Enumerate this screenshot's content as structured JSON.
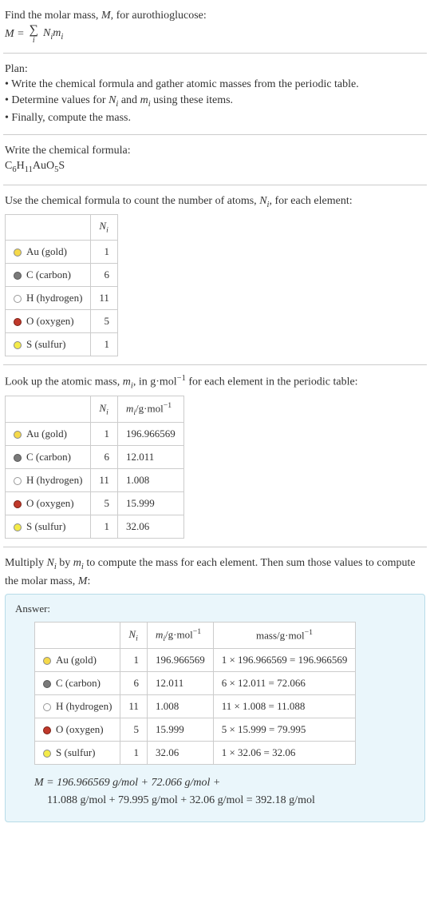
{
  "intro": {
    "line1_pre": "Find the molar mass, ",
    "line1_M": "M",
    "line1_post": ", for aurothioglucose:",
    "eq_lhs": "M = ",
    "eq_rhs_N": "N",
    "eq_rhs_i1": "i",
    "eq_rhs_m": "m",
    "eq_rhs_i2": "i",
    "sigma_idx": "i"
  },
  "plan": {
    "title": "Plan:",
    "b1_pre": "• Write the chemical formula and gather atomic masses from the periodic table.",
    "b2_pre": "• Determine values for ",
    "b2_N": "N",
    "b2_i1": "i",
    "b2_and": " and ",
    "b2_m": "m",
    "b2_i2": "i",
    "b2_post": " using these items.",
    "b3": "• Finally, compute the mass."
  },
  "chem": {
    "title": "Write the chemical formula:",
    "C": "C",
    "n6": "6",
    "H": "H",
    "n11": "11",
    "Au": "Au",
    "O": "O",
    "n5": "5",
    "S": "S"
  },
  "count": {
    "title_pre": "Use the chemical formula to count the number of atoms, ",
    "N": "N",
    "i": "i",
    "title_post": ", for each element:",
    "hdr_Ni_N": "N",
    "hdr_Ni_i": "i"
  },
  "lookup": {
    "title_pre": "Look up the atomic mass, ",
    "m": "m",
    "i": "i",
    "title_mid": ", in g·mol",
    "neg1a": "−1",
    "title_post": " for each element in the periodic table:",
    "hdr_m": "m",
    "hdr_mi": "i",
    "hdr_unit_pre": "/g·mol",
    "hdr_unit_sup": "−1"
  },
  "multiply": {
    "l1_pre": "Multiply ",
    "N": "N",
    "i1": "i",
    "l1_by": " by ",
    "m": "m",
    "i2": "i",
    "l1_post": " to compute the mass for each element. Then sum those values to compute the molar mass, ",
    "M": "M",
    "l1_colon": ":"
  },
  "answer": {
    "label": "Answer:",
    "hdr_mass_pre": "mass/g·mol",
    "hdr_mass_sup": "−1",
    "final_l1": "M = 196.966569 g/mol + 72.066 g/mol +",
    "final_l2": "11.088 g/mol + 79.995 g/mol + 32.06 g/mol = 392.18 g/mol"
  },
  "elements": [
    {
      "sym": "Au",
      "name": "gold",
      "color": "#f5d94a",
      "border": "#888",
      "Ni": "1",
      "mi": "196.966569",
      "mass": "1 × 196.966569 = 196.966569"
    },
    {
      "sym": "C",
      "name": "carbon",
      "color": "#7a7a7a",
      "border": "#555",
      "Ni": "6",
      "mi": "12.011",
      "mass": "6 × 12.011 = 72.066"
    },
    {
      "sym": "H",
      "name": "hydrogen",
      "color": "#ffffff",
      "border": "#999",
      "Ni": "11",
      "mi": "1.008",
      "mass": "11 × 1.008 = 11.088"
    },
    {
      "sym": "O",
      "name": "oxygen",
      "color": "#c0392b",
      "border": "#7a1f14",
      "Ni": "5",
      "mi": "15.999",
      "mass": "5 × 15.999 = 79.995"
    },
    {
      "sym": "S",
      "name": "sulfur",
      "color": "#f4eb49",
      "border": "#888",
      "Ni": "1",
      "mi": "32.06",
      "mass": "1 × 32.06 = 32.06"
    }
  ]
}
